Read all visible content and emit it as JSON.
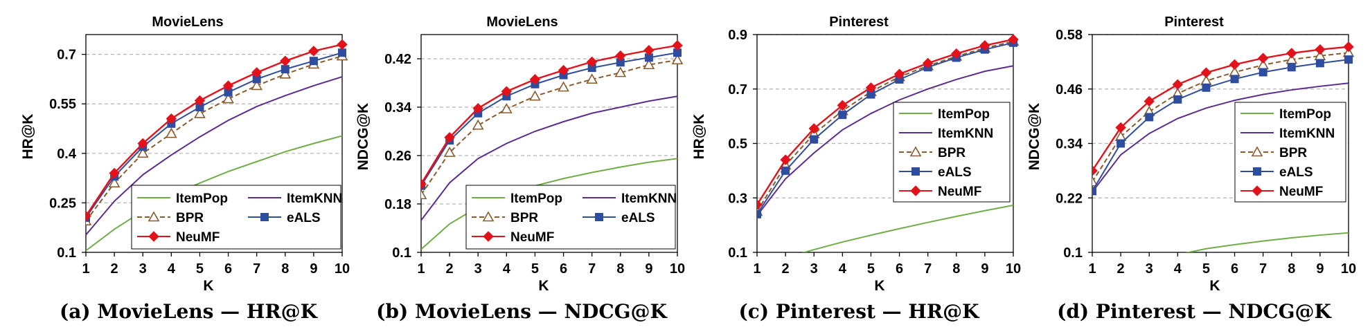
{
  "colors": {
    "ItemPop": "#70ad47",
    "ItemKNN": "#5b2c8f",
    "BPR": "#8b5a2b",
    "eALS": "#2f4d9e",
    "NeuMF": "#e3121a",
    "grid": "#b3b3b3"
  },
  "markers": {
    "ItemPop": "none",
    "ItemKNN": "none",
    "BPR": "open-triangle",
    "eALS": "square",
    "NeuMF": "diamond"
  },
  "chart_data": [
    {
      "type": "line",
      "title": "MovieLens",
      "xlabel": "K",
      "ylabel": "HR@K",
      "caption": "(a) MovieLens — HR@K",
      "x": [
        1,
        2,
        3,
        4,
        5,
        6,
        7,
        8,
        9,
        10
      ],
      "xticks": [
        "1",
        "2",
        "3",
        "4",
        "5",
        "6",
        "7",
        "8",
        "9",
        "10"
      ],
      "ylim": [
        0.1,
        0.76
      ],
      "yticks": [
        0.1,
        0.25,
        0.4,
        0.55,
        0.7
      ],
      "ytick_labels": [
        "0.1",
        "0.25",
        "0.4",
        "0.55",
        "0.7"
      ],
      "grid": "horizontal dashed",
      "legend_placement": "bottom-right",
      "legend_columns": 2,
      "series": [
        {
          "name": "ItemPop",
          "values": [
            0.105,
            0.17,
            0.225,
            0.275,
            0.31,
            0.345,
            0.375,
            0.405,
            0.43,
            0.453
          ]
        },
        {
          "name": "ItemKNN",
          "values": [
            0.153,
            0.255,
            0.335,
            0.395,
            0.45,
            0.5,
            0.542,
            0.575,
            0.605,
            0.632
          ]
        },
        {
          "name": "BPR",
          "values": [
            0.195,
            0.31,
            0.4,
            0.46,
            0.52,
            0.565,
            0.605,
            0.64,
            0.67,
            0.695
          ]
        },
        {
          "name": "eALS",
          "values": [
            0.205,
            0.33,
            0.42,
            0.49,
            0.54,
            0.585,
            0.625,
            0.655,
            0.68,
            0.705
          ]
        },
        {
          "name": "NeuMF",
          "values": [
            0.21,
            0.34,
            0.43,
            0.505,
            0.56,
            0.605,
            0.645,
            0.68,
            0.71,
            0.73
          ]
        }
      ]
    },
    {
      "type": "line",
      "title": "MovieLens",
      "xlabel": "K",
      "ylabel": "NDCG@K",
      "caption": "(b) MovieLens — NDCG@K",
      "x": [
        1,
        2,
        3,
        4,
        5,
        6,
        7,
        8,
        9,
        10
      ],
      "xticks": [
        "1",
        "2",
        "3",
        "4",
        "5",
        "6",
        "7",
        "8",
        "9",
        "10"
      ],
      "ylim": [
        0.1,
        0.46
      ],
      "yticks": [
        0.1,
        0.18,
        0.26,
        0.34,
        0.42
      ],
      "ytick_labels": [
        "0.1",
        "0.18",
        "0.26",
        "0.34",
        "0.42"
      ],
      "grid": "horizontal dashed",
      "legend_placement": "bottom-right",
      "legend_columns": 2,
      "series": [
        {
          "name": "ItemPop",
          "values": [
            0.105,
            0.147,
            0.175,
            0.195,
            0.21,
            0.222,
            0.232,
            0.241,
            0.249,
            0.255
          ]
        },
        {
          "name": "ItemKNN",
          "values": [
            0.153,
            0.215,
            0.255,
            0.28,
            0.3,
            0.316,
            0.33,
            0.34,
            0.35,
            0.358
          ]
        },
        {
          "name": "BPR",
          "values": [
            0.195,
            0.265,
            0.31,
            0.337,
            0.358,
            0.373,
            0.386,
            0.397,
            0.41,
            0.418
          ]
        },
        {
          "name": "eALS",
          "values": [
            0.21,
            0.285,
            0.33,
            0.358,
            0.378,
            0.393,
            0.405,
            0.414,
            0.422,
            0.43
          ]
        },
        {
          "name": "NeuMF",
          "values": [
            0.213,
            0.29,
            0.338,
            0.366,
            0.386,
            0.401,
            0.415,
            0.425,
            0.434,
            0.442
          ]
        }
      ]
    },
    {
      "type": "line",
      "title": "Pinterest",
      "xlabel": "K",
      "ylabel": "HR@K",
      "caption": "(c) Pinterest — HR@K",
      "x": [
        1,
        2,
        3,
        4,
        5,
        6,
        7,
        8,
        9,
        10
      ],
      "xticks": [
        "1",
        "2",
        "3",
        "4",
        "5",
        "6",
        "7",
        "8",
        "9",
        "10"
      ],
      "ylim": [
        0.1,
        0.9
      ],
      "yticks": [
        0.1,
        0.3,
        0.5,
        0.7,
        0.9
      ],
      "ytick_labels": [
        "0.1",
        "0.3",
        "0.5",
        "0.7",
        "0.9"
      ],
      "grid": "horizontal dashed",
      "legend_placement": "right",
      "legend_columns": 1,
      "series": [
        {
          "name": "ItemPop",
          "values": [
            0.04,
            0.08,
            0.11,
            0.138,
            0.163,
            0.187,
            0.21,
            0.232,
            0.253,
            0.273
          ]
        },
        {
          "name": "ItemKNN",
          "values": [
            0.235,
            0.37,
            0.465,
            0.55,
            0.61,
            0.66,
            0.7,
            0.735,
            0.765,
            0.785
          ]
        },
        {
          "name": "BPR",
          "values": [
            0.25,
            0.42,
            0.535,
            0.62,
            0.69,
            0.745,
            0.785,
            0.82,
            0.85,
            0.875
          ]
        },
        {
          "name": "eALS",
          "values": [
            0.24,
            0.4,
            0.515,
            0.605,
            0.68,
            0.735,
            0.78,
            0.815,
            0.845,
            0.87
          ]
        },
        {
          "name": "NeuMF",
          "values": [
            0.275,
            0.44,
            0.555,
            0.64,
            0.705,
            0.755,
            0.795,
            0.83,
            0.86,
            0.882
          ]
        }
      ]
    },
    {
      "type": "line",
      "title": "Pinterest",
      "xlabel": "K",
      "ylabel": "NDCG@K",
      "caption": "(d) Pinterest — NDCG@K",
      "x": [
        1,
        2,
        3,
        4,
        5,
        6,
        7,
        8,
        9,
        10
      ],
      "xticks": [
        "1",
        "2",
        "3",
        "4",
        "5",
        "6",
        "7",
        "8",
        "9",
        "10"
      ],
      "ylim": [
        0.1,
        0.58
      ],
      "yticks": [
        0.1,
        0.22,
        0.34,
        0.46,
        0.58
      ],
      "ytick_labels": [
        "0.1",
        "0.22",
        "0.34",
        "0.46",
        "0.58"
      ],
      "grid": "horizontal dashed",
      "legend_placement": "right",
      "legend_columns": 1,
      "series": [
        {
          "name": "ItemPop",
          "values": [
            0.04,
            0.062,
            0.08,
            0.095,
            0.108,
            0.117,
            0.125,
            0.132,
            0.138,
            0.143
          ]
        },
        {
          "name": "ItemKNN",
          "values": [
            0.233,
            0.315,
            0.362,
            0.395,
            0.418,
            0.435,
            0.448,
            0.458,
            0.466,
            0.473
          ]
        },
        {
          "name": "BPR",
          "values": [
            0.255,
            0.355,
            0.41,
            0.45,
            0.478,
            0.497,
            0.513,
            0.525,
            0.533,
            0.54
          ]
        },
        {
          "name": "eALS",
          "values": [
            0.235,
            0.34,
            0.398,
            0.437,
            0.463,
            0.482,
            0.497,
            0.508,
            0.517,
            0.525
          ]
        },
        {
          "name": "NeuMF",
          "values": [
            0.28,
            0.375,
            0.433,
            0.47,
            0.496,
            0.514,
            0.528,
            0.539,
            0.547,
            0.553
          ]
        }
      ]
    }
  ]
}
